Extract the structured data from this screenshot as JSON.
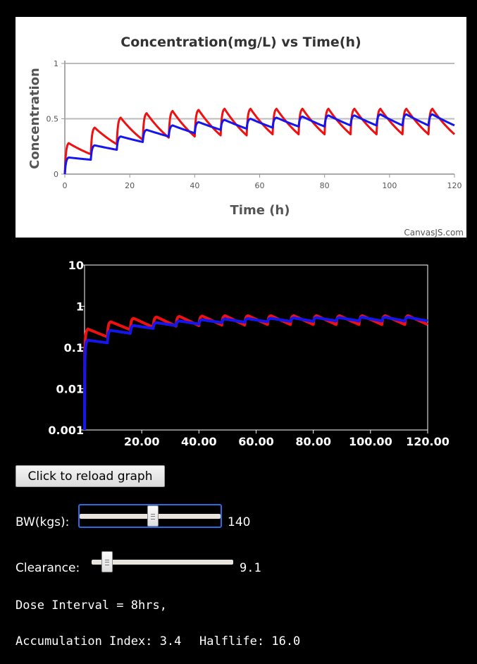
{
  "colors": {
    "series_red": "#ee1111",
    "series_blue": "#1515ee",
    "chart1_bg": "#ffffff",
    "chart1_grid": "#bbbbbb",
    "chart2_bg": "#000000",
    "chart2_axis": "#ffffff",
    "focus_outline": "#2d6cdf"
  },
  "chart_data": [
    {
      "type": "line",
      "title": "Concentration(mg/L) vs Time(h)",
      "xlabel": "Time (h)",
      "ylabel": "Concentration",
      "xlim": [
        0,
        120
      ],
      "ylim": [
        0,
        1
      ],
      "x_ticks": [
        "0",
        "20",
        "40",
        "60",
        "80",
        "100",
        "120"
      ],
      "y_ticks": [
        "0",
        "0.5",
        "1"
      ],
      "grid": true,
      "credit": "CanvasJS.com",
      "dose_interval_h": 8,
      "series": [
        {
          "color": "#ee1111",
          "peak_level": [
            0.28,
            0.42,
            0.51,
            0.55,
            0.57,
            0.58,
            0.59,
            0.59,
            0.59,
            0.59,
            0.59,
            0.59,
            0.59,
            0.59,
            0.59
          ],
          "trough_level": [
            0.18,
            0.27,
            0.31,
            0.33,
            0.34,
            0.35,
            0.35,
            0.36,
            0.36,
            0.36,
            0.36,
            0.36,
            0.36,
            0.36,
            0.36
          ]
        },
        {
          "color": "#1515ee",
          "peak_level": [
            0.15,
            0.26,
            0.34,
            0.4,
            0.44,
            0.47,
            0.49,
            0.5,
            0.51,
            0.52,
            0.53,
            0.53,
            0.54,
            0.54,
            0.54
          ],
          "trough_level": [
            0.13,
            0.22,
            0.29,
            0.34,
            0.37,
            0.4,
            0.41,
            0.42,
            0.43,
            0.43,
            0.44,
            0.44,
            0.44,
            0.44,
            0.44
          ]
        }
      ]
    },
    {
      "type": "line",
      "y_scale": "log",
      "xlim": [
        0,
        120
      ],
      "ylim": [
        0.001,
        10
      ],
      "x_ticks": [
        "20.00",
        "40.00",
        "60.00",
        "80.00",
        "100.00",
        "120.00"
      ],
      "y_ticks": [
        "0.001",
        "0.01",
        "0.1",
        "1",
        "10"
      ],
      "grid": false,
      "dose_interval_h": 8,
      "series": [
        {
          "color": "#ee1111",
          "peak_level": [
            0.28,
            0.42,
            0.51,
            0.55,
            0.57,
            0.58,
            0.59,
            0.59,
            0.59,
            0.59,
            0.59,
            0.59,
            0.59,
            0.59,
            0.59
          ],
          "trough_level": [
            0.18,
            0.27,
            0.31,
            0.33,
            0.34,
            0.35,
            0.35,
            0.36,
            0.36,
            0.36,
            0.36,
            0.36,
            0.36,
            0.36,
            0.36
          ]
        },
        {
          "color": "#1515ee",
          "peak_level": [
            0.15,
            0.26,
            0.34,
            0.4,
            0.44,
            0.47,
            0.49,
            0.5,
            0.51,
            0.52,
            0.53,
            0.53,
            0.54,
            0.54,
            0.54
          ],
          "trough_level": [
            0.13,
            0.22,
            0.29,
            0.34,
            0.37,
            0.4,
            0.41,
            0.42,
            0.43,
            0.43,
            0.44,
            0.44,
            0.44,
            0.44,
            0.44
          ]
        }
      ]
    }
  ],
  "controls": {
    "reload_label": "Click to reload graph",
    "bw": {
      "label": "BW(kgs):",
      "value": "140",
      "fraction": 0.52
    },
    "clearance": {
      "label": "Clearance:",
      "value": "9.1",
      "fraction": 0.11
    },
    "dose_interval_text": "Dose Interval = 8hrs,",
    "accumulation_text": "Accumulation Index: 3.4",
    "halflife_text": "Halflife: 16.0"
  }
}
